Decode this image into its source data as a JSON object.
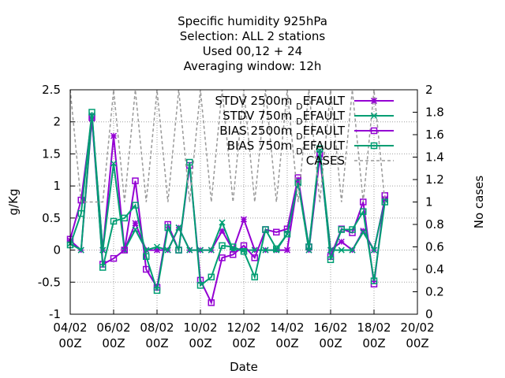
{
  "chart_data": {
    "type": "line",
    "title_lines": [
      "Specific humidity 925hPa",
      "Selection: ALL       2 stations",
      "Used  00,12  + 24",
      "Averaging window: 12h"
    ],
    "xlabel": "Date",
    "ylabel": "g/Kg",
    "y2label": "No cases",
    "x_ticks": [
      {
        "x": 0,
        "l1": "04/02",
        "l2": "00Z"
      },
      {
        "x": 2,
        "l1": "06/02",
        "l2": "00Z"
      },
      {
        "x": 4,
        "l1": "08/02",
        "l2": "00Z"
      },
      {
        "x": 6,
        "l1": "10/02",
        "l2": "00Z"
      },
      {
        "x": 8,
        "l1": "12/02",
        "l2": "00Z"
      },
      {
        "x": 10,
        "l1": "14/02",
        "l2": "00Z"
      },
      {
        "x": 12,
        "l1": "16/02",
        "l2": "00Z"
      },
      {
        "x": 14,
        "l1": "18/02",
        "l2": "00Z"
      },
      {
        "x": 16,
        "l1": "20/02",
        "l2": "00Z"
      }
    ],
    "xlim": [
      0,
      16
    ],
    "ylim": [
      -1,
      2.5
    ],
    "y2lim": [
      0,
      2
    ],
    "y_ticks": [
      "-1",
      "-0.5",
      "0",
      "0.5",
      "1",
      "1.5",
      "2",
      "2.5"
    ],
    "y2_ticks": [
      "0",
      "0.2",
      "0.4",
      "0.6",
      "0.8",
      "1",
      "1.2",
      "1.4",
      "1.6",
      "1.8",
      "2"
    ],
    "grid": true,
    "legend_position": "top-right",
    "series": [
      {
        "name": "STDV 2500m DEFAULT",
        "name_parts": [
          "STDV 2500m ",
          "D",
          "EFAULT"
        ],
        "color": "#9400d3",
        "marker": "star",
        "x": [
          0,
          0.5,
          1,
          1.5,
          2,
          2.5,
          3,
          3.5,
          4,
          4.5,
          5,
          5.5,
          6,
          6.5,
          7,
          7.5,
          8,
          8.5,
          9,
          9.5,
          10,
          10.5,
          11,
          11.5,
          12,
          12.5,
          13,
          13.5,
          14,
          14.5
        ],
        "y": [
          0.15,
          0.0,
          2.05,
          0.0,
          1.78,
          0.0,
          0.42,
          0.0,
          0.0,
          0.0,
          0.35,
          0.0,
          0.0,
          0.0,
          0.3,
          0.0,
          0.48,
          0.0,
          0.0,
          0.0,
          0.0,
          1.1,
          0.0,
          1.45,
          0.0,
          0.13,
          0.0,
          0.3,
          0.0,
          0.8
        ]
      },
      {
        "name": "STDV 750m DEFAULT",
        "name_parts": [
          "STDV 750m ",
          "D",
          "EFAULT"
        ],
        "color": "#009e73",
        "marker": "x",
        "x": [
          0,
          0.5,
          1,
          1.5,
          2,
          2.5,
          3,
          3.5,
          4,
          4.5,
          5,
          5.5,
          6,
          6.5,
          7,
          7.5,
          8,
          8.5,
          9,
          9.5,
          10,
          10.5,
          11,
          11.5,
          12,
          12.5,
          13,
          13.5,
          14,
          14.5
        ],
        "y": [
          0.1,
          0.0,
          2.1,
          0.0,
          1.35,
          0.0,
          0.32,
          0.0,
          0.05,
          0.0,
          0.35,
          0.0,
          0.0,
          0.0,
          0.43,
          0.0,
          0.0,
          0.0,
          0.0,
          0.0,
          0.25,
          1.05,
          0.0,
          1.55,
          0.0,
          0.0,
          0.0,
          0.28,
          0.0,
          0.78
        ]
      },
      {
        "name": "BIAS 2500m DEFAULT",
        "name_parts": [
          "BIAS 2500m ",
          "D",
          "EFAULT"
        ],
        "color": "#9400d3",
        "marker": "square",
        "x": [
          0,
          0.5,
          1,
          1.5,
          2,
          2.5,
          3,
          3.5,
          4,
          4.5,
          5,
          5.5,
          6,
          6.5,
          7,
          7.5,
          8,
          8.5,
          9,
          9.5,
          10,
          10.5,
          11,
          11.5,
          12,
          12.5,
          13,
          13.5,
          14,
          14.5
        ],
        "y": [
          0.17,
          0.78,
          2.07,
          -0.22,
          -0.13,
          0.0,
          1.08,
          -0.3,
          -0.58,
          0.4,
          0.0,
          1.32,
          -0.47,
          -0.82,
          -0.12,
          -0.07,
          0.07,
          -0.12,
          0.32,
          0.28,
          0.33,
          1.13,
          0.05,
          1.5,
          -0.1,
          0.33,
          0.27,
          0.75,
          -0.53,
          0.85
        ]
      },
      {
        "name": "BIAS 750m DEFAULT",
        "name_parts": [
          "BIAS 750m ",
          "D",
          "EFAULT"
        ],
        "color": "#009e73",
        "marker": "square",
        "x": [
          0,
          0.5,
          1,
          1.5,
          2,
          2.5,
          3,
          3.5,
          4,
          4.5,
          5,
          5.5,
          6,
          6.5,
          7,
          7.5,
          8,
          8.5,
          9,
          9.5,
          10,
          10.5,
          11,
          11.5,
          12,
          12.5,
          13,
          13.5,
          14,
          14.5
        ],
        "y": [
          0.08,
          0.57,
          2.15,
          -0.27,
          0.45,
          0.5,
          0.7,
          -0.1,
          -0.63,
          0.35,
          0.0,
          1.37,
          -0.55,
          -0.42,
          0.07,
          0.05,
          -0.02,
          -0.42,
          0.32,
          0.02,
          0.25,
          1.05,
          0.05,
          1.58,
          -0.15,
          0.32,
          0.32,
          0.6,
          -0.48,
          0.75
        ]
      },
      {
        "name": "CASES",
        "name_parts": [
          "CASES"
        ],
        "color": "#999999",
        "marker": "none",
        "dashed": true,
        "axis": "y2",
        "x": [
          0,
          0.5,
          1,
          1.5,
          2,
          2.5,
          3,
          3.5,
          4,
          4.5,
          5,
          5.5,
          6,
          6.5,
          7,
          7.5,
          8,
          8.5,
          9,
          9.5,
          10,
          10.5,
          11,
          11.5,
          12,
          12.5,
          13,
          13.5,
          14,
          14.5
        ],
        "y": [
          2,
          1,
          1,
          1,
          2,
          1,
          2,
          1,
          2,
          1,
          2,
          1,
          2,
          1,
          2,
          1,
          2,
          1,
          2,
          1,
          2,
          1,
          2,
          1,
          2,
          1,
          2,
          1,
          2,
          1
        ]
      }
    ]
  }
}
